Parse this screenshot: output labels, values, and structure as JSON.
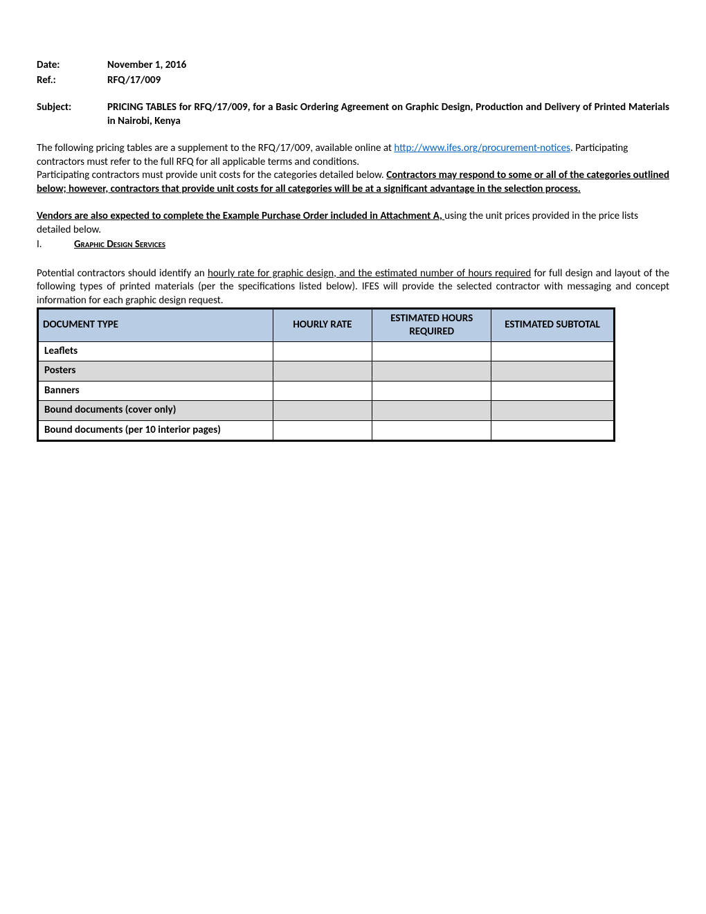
{
  "header": {
    "date_label": "Date:",
    "date_value": "November 1, 2016",
    "ref_label": "Ref.:",
    "ref_value": "RFQ/17/009",
    "subject_label": "Subject:",
    "subject_value": "PRICING TABLES for RFQ/17/009, for a Basic Ordering Agreement on Graphic Design, Production and Delivery of Printed Materials in Nairobi, Kenya"
  },
  "intro": {
    "p1a": "The following pricing tables are a supplement to the RFQ/17/009, available online at ",
    "link_text": "http://www.ifes.org/procurement-notices",
    "p1b": ". Participating contractors must refer to the full RFQ for all applicable terms and conditions.",
    "p2a": "Participating contractors must provide unit costs for the categories detailed below.  ",
    "p2b_bold": "Contractors may respond to some or all of the categories outlined below; however, contractors that provide unit costs for all categories will be at a significant advantage in the selection process.",
    "p3a_bold": "Vendors are also expected to complete the Example Purchase Order included in Attachment A, ",
    "p3b": "using the unit prices provided in the price lists detailed below."
  },
  "section1": {
    "num": "I.",
    "title": "Graphic Design Services",
    "desc_a": "Potential contractors should identify an ",
    "desc_b_underline": "hourly rate for graphic design, and the estimated number of hours required",
    "desc_c": " for full design and layout of the following types of printed materials (per the specifications listed below). IFES will provide the selected contractor with messaging and concept information for each graphic design request."
  },
  "table1": {
    "headers": [
      "DOCUMENT TYPE",
      "HOURLY RATE",
      "ESTIMATED HOURS REQUIRED",
      "ESTIMATED SUBTOTAL"
    ],
    "rows": [
      {
        "shaded": false,
        "cells": [
          "Leaflets",
          "",
          "",
          ""
        ]
      },
      {
        "shaded": true,
        "cells": [
          "Posters",
          "",
          "",
          ""
        ]
      },
      {
        "shaded": false,
        "cells": [
          "Banners",
          "",
          "",
          ""
        ]
      },
      {
        "shaded": true,
        "cells": [
          "Bound documents (cover only)",
          "",
          "",
          ""
        ]
      },
      {
        "shaded": false,
        "cells": [
          "Bound documents (per 10 interior pages)",
          "",
          "",
          ""
        ]
      }
    ]
  },
  "colors": {
    "header_bg": "#b8cce4",
    "shaded_bg": "#d9d9d9",
    "link": "#0563c1",
    "border": "#000000",
    "text": "#000000",
    "page_bg": "#ffffff"
  }
}
